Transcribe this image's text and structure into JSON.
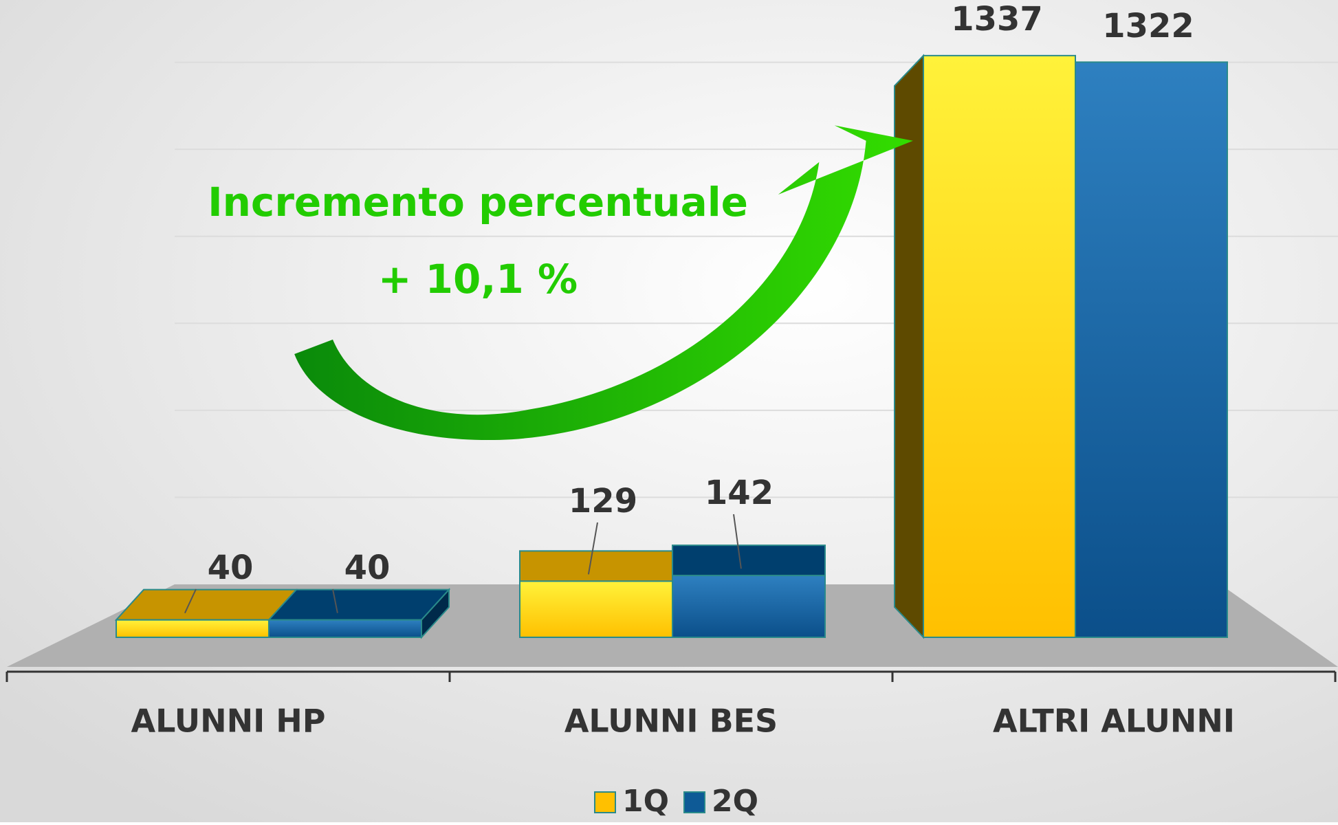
{
  "chart_data": {
    "type": "bar3d",
    "categories": [
      "ALUNNI HP",
      "ALUNNI BES",
      "ALTRI ALUNNI"
    ],
    "series": [
      {
        "name": "1Q",
        "color": "#ffc000",
        "values": [
          40,
          129,
          1337
        ]
      },
      {
        "name": "2Q",
        "color": "#0e5a96",
        "values": [
          40,
          142,
          1322
        ]
      }
    ],
    "annotations": [
      "Incremento percentuale",
      "+ 10,1 %"
    ],
    "ylim": [
      0,
      1400
    ],
    "yticks": [
      0,
      200,
      400,
      600,
      800,
      1000,
      1200,
      1400
    ],
    "grid": true
  }
}
